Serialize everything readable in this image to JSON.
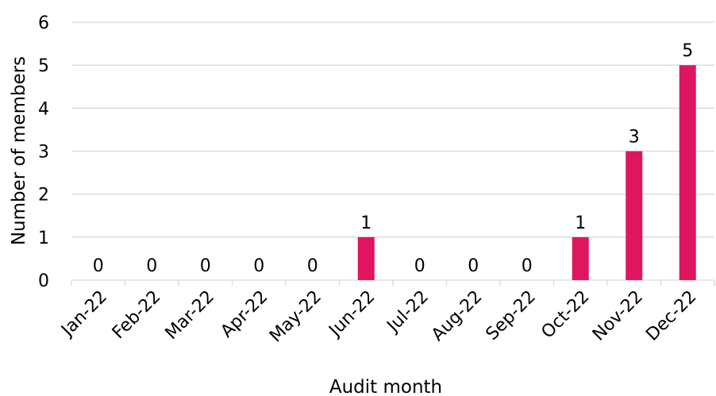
{
  "chart_data": {
    "type": "bar",
    "categories": [
      "Jan-22",
      "Feb-22",
      "Mar-22",
      "Apr-22",
      "May-22",
      "Jun-22",
      "Jul-22",
      "Aug-22",
      "Sep-22",
      "Oct-22",
      "Nov-22",
      "Dec-22"
    ],
    "values": [
      0,
      0,
      0,
      0,
      0,
      1,
      0,
      0,
      0,
      1,
      3,
      5
    ],
    "data_labels": [
      "0",
      "0",
      "0",
      "0",
      "0",
      "1",
      "0",
      "0",
      "0",
      "1",
      "3",
      "5"
    ],
    "xlabel": "Audit month",
    "ylabel": "Number of members",
    "ylim": [
      0,
      6
    ],
    "yticks": [
      0,
      1,
      2,
      3,
      4,
      5,
      6
    ],
    "grid": true,
    "bar_color": "#e0155f"
  }
}
